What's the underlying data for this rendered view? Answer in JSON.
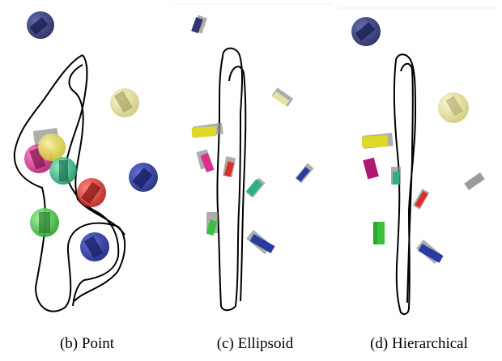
{
  "figure": {
    "panels": [
      {
        "caption": "(b) Point",
        "method": "point",
        "representation": "spheres"
      },
      {
        "caption": "(c) Ellipsoid",
        "method": "ellipsoid",
        "representation": "boxes"
      },
      {
        "caption": "(d) Hierarchical",
        "method": "hierarchical",
        "representation": "boxes"
      }
    ],
    "colors": {
      "navy": "#2e3570",
      "blue": "#2b3aa0",
      "yellow": "#d8d050",
      "pale-yellow": "#e4e0a0",
      "magenta": "#d8308c",
      "teal": "#2fb080",
      "red": "#d8302c",
      "green": "#3cc03c",
      "gray": "#8a8a8a",
      "trajectory": "#000000"
    }
  }
}
